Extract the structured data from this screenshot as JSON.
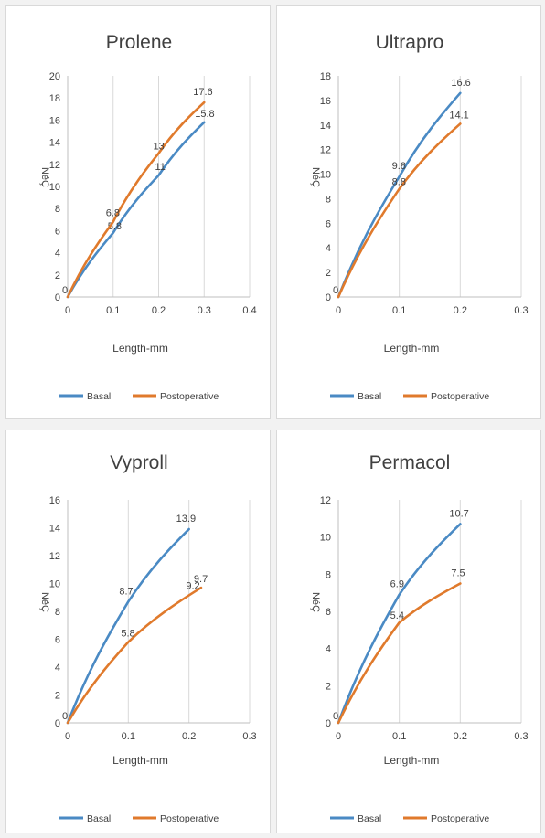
{
  "colors": {
    "basal": "#4a8ac4",
    "postoperative": "#e07a2c"
  },
  "chart_data": [
    {
      "type": "line",
      "title": "Prolene",
      "xlabel": "Length-mm",
      "ylabel": "NéÇ",
      "xlim": [
        0,
        0.4
      ],
      "ylim": [
        0,
        20
      ],
      "xticks": [
        0,
        0.1,
        0.2,
        0.3,
        0.4
      ],
      "yticks": [
        0,
        2,
        4,
        6,
        8,
        10,
        12,
        14,
        16,
        18,
        20
      ],
      "xtick_labels": [
        "0",
        "0.1",
        "0.2",
        "0.3",
        "0.4"
      ],
      "ytick_labels": [
        "0",
        "2",
        "4",
        "6",
        "8",
        "10",
        "12",
        "14",
        "16",
        "18",
        "20"
      ],
      "series": [
        {
          "name": "Basal",
          "color": "#4a8ac4",
          "x": [
            0,
            0.1,
            0.2,
            0.3
          ],
          "y": [
            0,
            5.8,
            11,
            15.8
          ],
          "labels": [
            "0",
            "5.8",
            "11",
            "15.8"
          ]
        },
        {
          "name": "Postoperative",
          "color": "#e07a2c",
          "x": [
            0,
            0.1,
            0.2,
            0.3
          ],
          "y": [
            0,
            6.8,
            13,
            17.6
          ],
          "labels": [
            "",
            "6.8",
            "13",
            "17.6"
          ]
        }
      ],
      "legend": [
        "Basal",
        "Postoperative"
      ],
      "legend_position": "bottom"
    },
    {
      "type": "line",
      "title": "Ultrapro",
      "xlabel": "Length-mm",
      "ylabel": "NéÇ",
      "xlim": [
        0,
        0.3
      ],
      "ylim": [
        0,
        18
      ],
      "xticks": [
        0,
        0.1,
        0.2,
        0.3
      ],
      "yticks": [
        0,
        2,
        4,
        6,
        8,
        10,
        12,
        14,
        16,
        18
      ],
      "xtick_labels": [
        "0",
        "0.1",
        "0.2",
        "0.3"
      ],
      "ytick_labels": [
        "0",
        "2",
        "4",
        "6",
        "8",
        "10",
        "12",
        "14",
        "16",
        "18"
      ],
      "series": [
        {
          "name": "Basal",
          "color": "#4a8ac4",
          "x": [
            0,
            0.1,
            0.2
          ],
          "y": [
            0,
            9.8,
            16.6
          ],
          "labels": [
            "0",
            "9.8",
            "16.6"
          ]
        },
        {
          "name": "Postoperative",
          "color": "#e07a2c",
          "x": [
            0,
            0.1,
            0.2
          ],
          "y": [
            0,
            8.8,
            14.1
          ],
          "labels": [
            "",
            "8.8",
            "14.1"
          ]
        }
      ],
      "legend": [
        "Basal",
        "Postoperative"
      ],
      "legend_position": "bottom"
    },
    {
      "type": "line",
      "title": "Vyproll",
      "xlabel": "Length-mm",
      "ylabel": "NéÇ",
      "xlim": [
        0,
        0.3
      ],
      "ylim": [
        0,
        16
      ],
      "xticks": [
        0,
        0.1,
        0.2,
        0.3
      ],
      "yticks": [
        0,
        2,
        4,
        6,
        8,
        10,
        12,
        14,
        16
      ],
      "xtick_labels": [
        "0",
        "0.1",
        "0.2",
        "0.3"
      ],
      "ytick_labels": [
        "0",
        "2",
        "4",
        "6",
        "8",
        "10",
        "12",
        "14",
        "16"
      ],
      "series": [
        {
          "name": "Basal",
          "color": "#4a8ac4",
          "x": [
            0,
            0.1,
            0.2
          ],
          "y": [
            0,
            8.7,
            13.9
          ],
          "labels": [
            "0",
            "8.7",
            "13.9"
          ]
        },
        {
          "name": "Postoperative",
          "color": "#e07a2c",
          "x": [
            0,
            0.1,
            0.22
          ],
          "y": [
            0,
            5.8,
            9.7
          ],
          "labels": [
            "",
            "5.8",
            "9.7"
          ]
        }
      ],
      "annotations": [
        "9.2"
      ],
      "legend": [
        "Basal",
        "Postoperative"
      ],
      "legend_position": "bottom"
    },
    {
      "type": "line",
      "title": "Permacol",
      "xlabel": "Length-mm",
      "ylabel": "NéÇ",
      "xlim": [
        0,
        0.3
      ],
      "ylim": [
        0,
        12
      ],
      "xticks": [
        0,
        0.1,
        0.2,
        0.3
      ],
      "yticks": [
        0,
        2,
        4,
        6,
        8,
        10,
        12
      ],
      "xtick_labels": [
        "0",
        "0.1",
        "0.2",
        "0.3"
      ],
      "ytick_labels": [
        "0",
        "2",
        "4",
        "6",
        "8",
        "10",
        "12"
      ],
      "series": [
        {
          "name": "Basal",
          "color": "#4a8ac4",
          "x": [
            0,
            0.1,
            0.2
          ],
          "y": [
            0,
            6.9,
            10.7
          ],
          "labels": [
            "0",
            "6.9",
            "10.7"
          ]
        },
        {
          "name": "Postoperative",
          "color": "#e07a2c",
          "x": [
            0,
            0.1,
            0.2
          ],
          "y": [
            0,
            5.4,
            7.5
          ],
          "labels": [
            "",
            "5.4",
            "7.5"
          ]
        }
      ],
      "legend": [
        "Basal",
        "Postoperative"
      ],
      "legend_position": "bottom"
    }
  ]
}
